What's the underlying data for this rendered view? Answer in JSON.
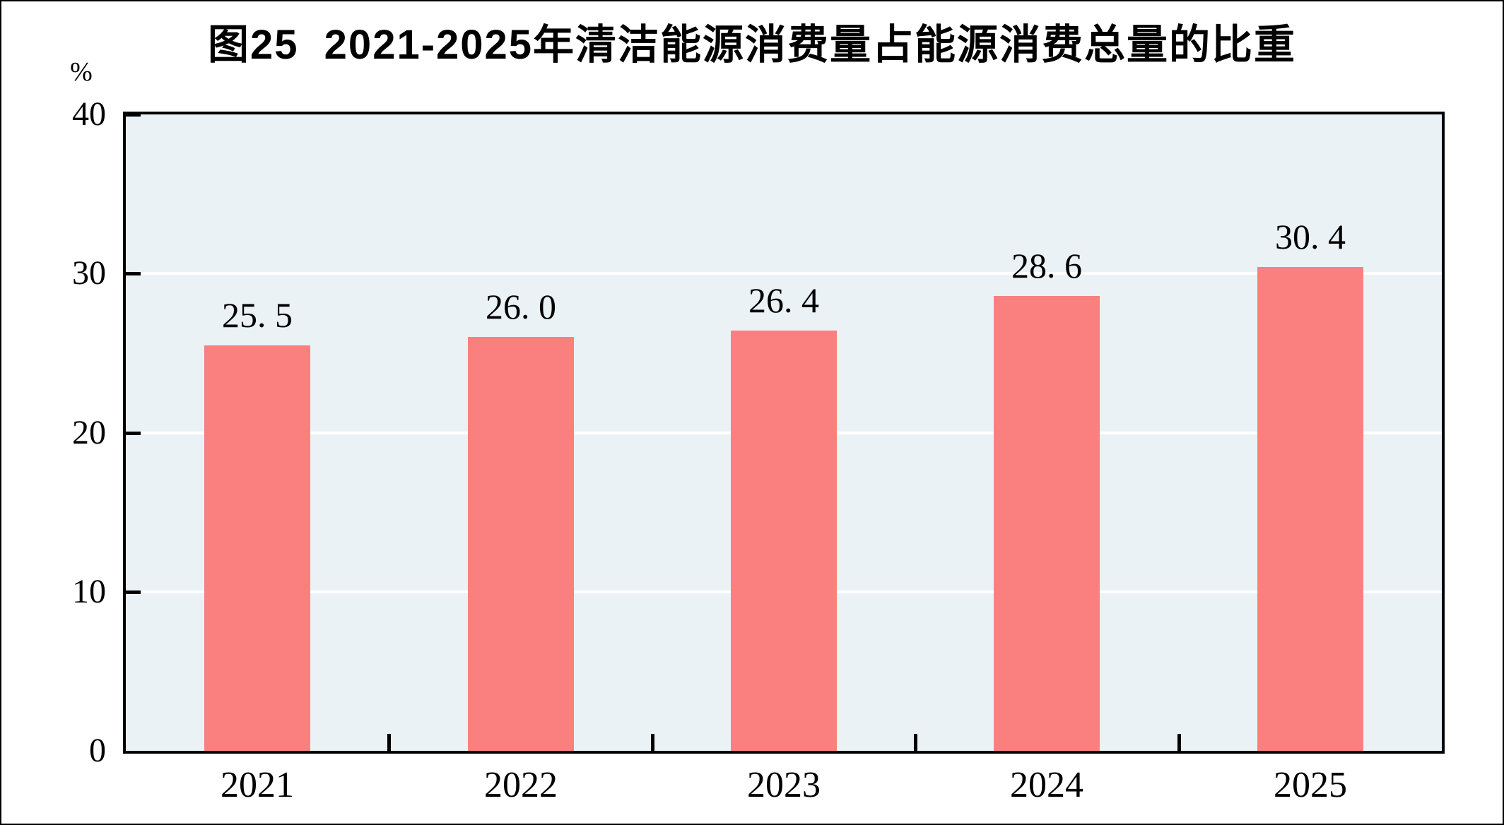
{
  "chart": {
    "unit_label": "%",
    "colors": {
      "bar": "#FA8080",
      "plot_background": "#EBF2F5",
      "gridline": "#FFFFFF",
      "axis_and_border": "#000000",
      "text": "#000000"
    }
  },
  "chart_data": {
    "type": "bar",
    "title": "图25  2021-2025年清洁能源消费量占能源消费总量的比重",
    "categories": [
      "2021",
      "2022",
      "2023",
      "2024",
      "2025"
    ],
    "values": [
      25.5,
      26.0,
      26.4,
      28.6,
      30.4
    ],
    "value_labels": [
      "25. 5",
      "26. 0",
      "26. 4",
      "28. 6",
      "30. 4"
    ],
    "xlabel": "",
    "ylabel": "%",
    "ylim": [
      0,
      40
    ],
    "yticks": [
      0,
      10,
      20,
      30,
      40
    ],
    "gridlines_at": [
      10,
      20,
      30
    ],
    "legend": "none",
    "grid": "horizontal white gridlines on light blue plot background",
    "value_label_position": "above bars"
  }
}
